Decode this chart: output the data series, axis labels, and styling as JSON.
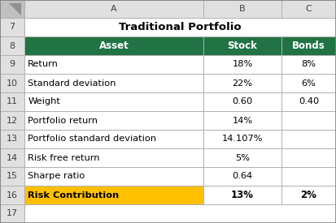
{
  "title": "Traditional Portfolio",
  "col_headers_row": [
    "",
    "A",
    "B",
    "C"
  ],
  "headers": [
    "Asset",
    "Stock",
    "Bonds"
  ],
  "rows": [
    [
      "Return",
      "18%",
      "8%"
    ],
    [
      "Standard deviation",
      "22%",
      "6%"
    ],
    [
      "Weight",
      "0.60",
      "0.40"
    ],
    [
      "Portfolio return",
      "14%",
      ""
    ],
    [
      "Portfolio standard deviation",
      "14.107%",
      ""
    ],
    [
      "Risk free return",
      "5%",
      ""
    ],
    [
      "Sharpe ratio",
      "0.64",
      ""
    ],
    [
      "Risk Contribution",
      "13%",
      "2%"
    ]
  ],
  "row_numbers": [
    "7",
    "8",
    "9",
    "10",
    "11",
    "12",
    "13",
    "14",
    "15",
    "16",
    "17"
  ],
  "header_bg": "#217346",
  "header_fg": "#ffffff",
  "last_row_bg": "#FFC000",
  "last_row_fg": "#000000",
  "title_bg": "#ffffff",
  "col_hdr_bg": "#e0e0e0",
  "row_num_bg": "#e0e0e0",
  "cell_bg": "#ffffff",
  "border_color": "#b0b0b0",
  "corner_bg": "#c0c0c0",
  "figsize": [
    4.13,
    2.75
  ],
  "dpi": 100
}
